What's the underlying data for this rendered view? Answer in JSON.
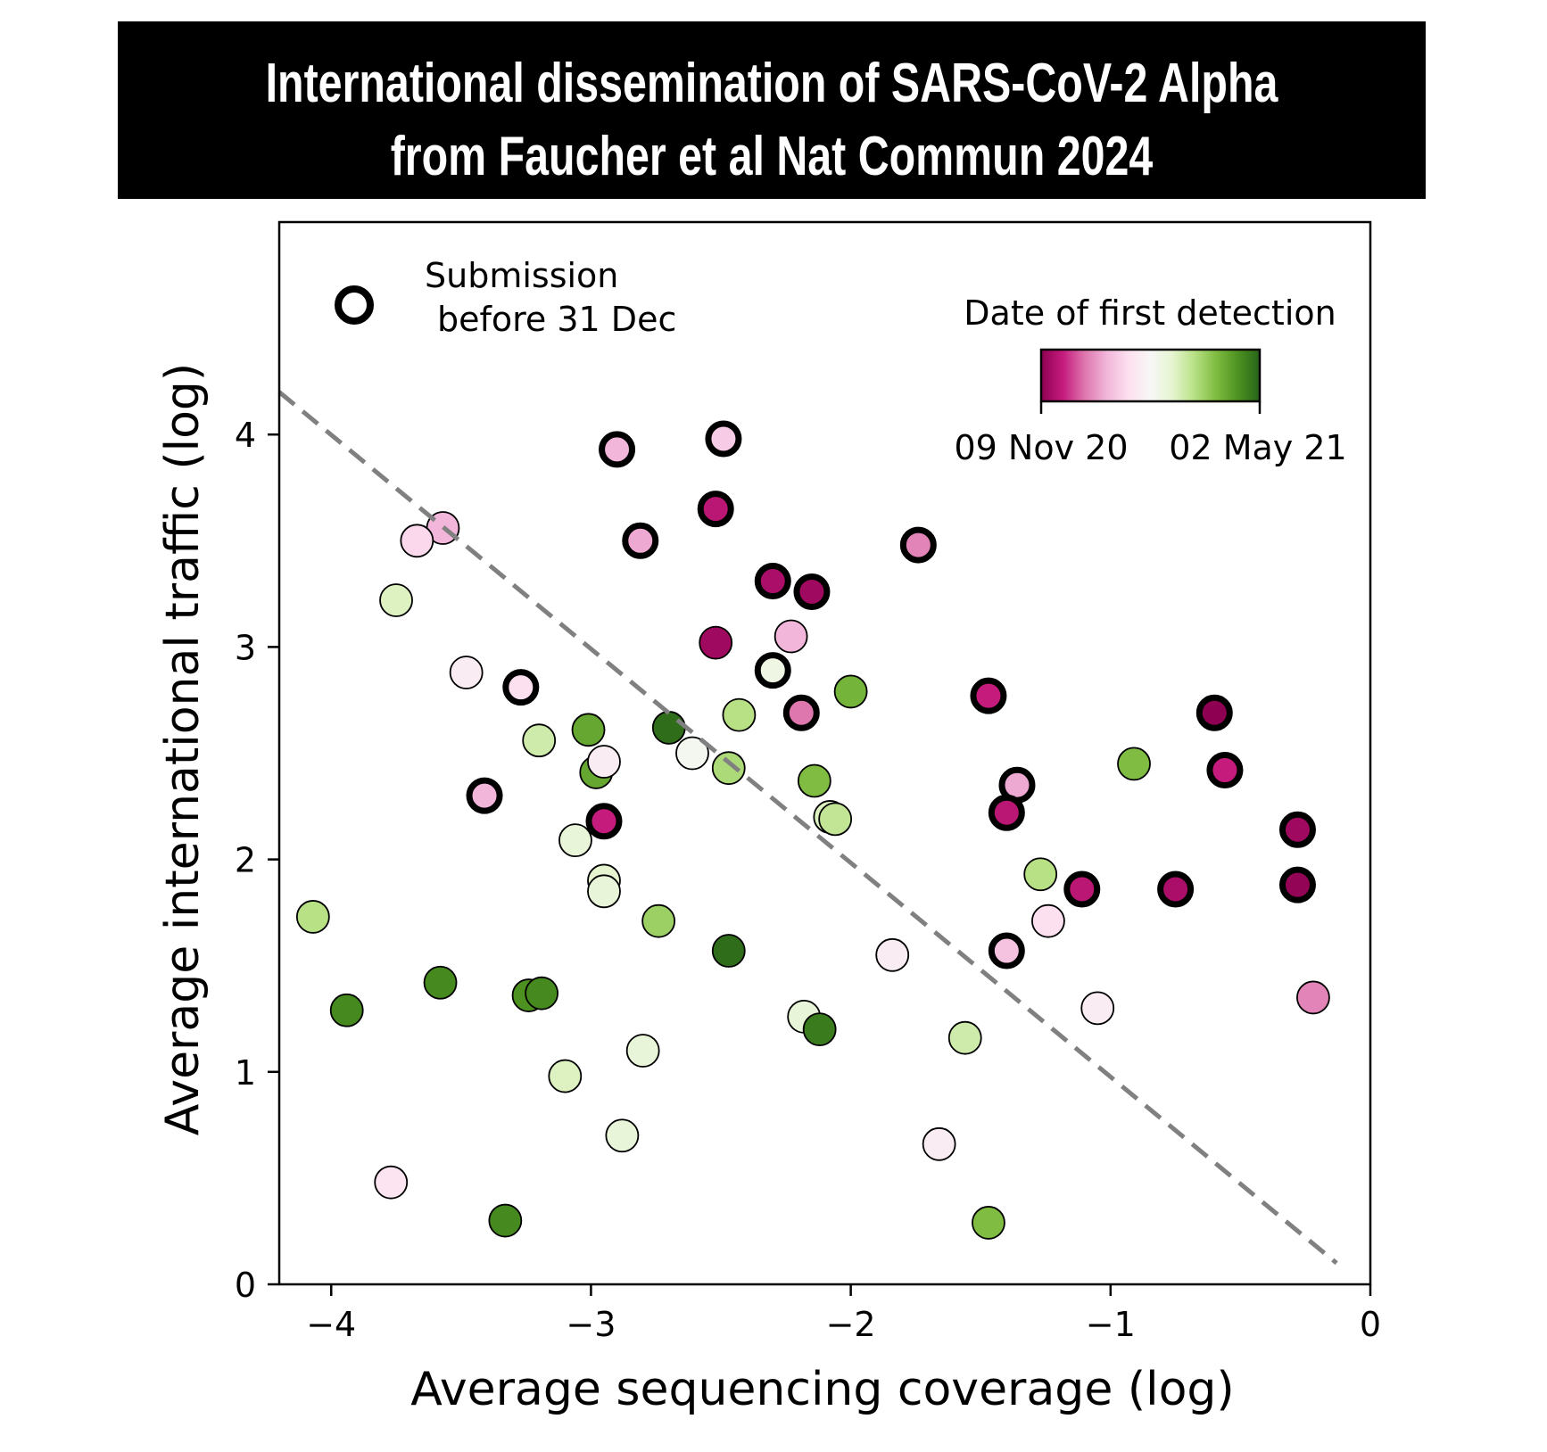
{
  "title": {
    "line1": "International dissemination of SARS-CoV-2 Alpha",
    "line2": "from Faucher et al Nat Commun 2024"
  },
  "chart_data": {
    "type": "scatter",
    "xlabel": "Average sequencing coverage (log)",
    "ylabel": "Average international traffic (log)",
    "xlim": [
      -4.2,
      0
    ],
    "ylim": [
      0,
      5
    ],
    "xticks": [
      -4,
      -3,
      -2,
      -1,
      0
    ],
    "xtick_labels": [
      "−4",
      "−3",
      "−2",
      "−1",
      "0"
    ],
    "yticks": [
      0,
      1,
      2,
      3,
      4
    ],
    "ytick_labels": [
      "0",
      "1",
      "2",
      "3",
      "4"
    ],
    "grid": false,
    "legend": {
      "placement": "top-left",
      "marker": "open circle with thick black outline",
      "label_line1": "Submission",
      "label_line2": "before 31 Dec"
    },
    "colorbar": {
      "title": "Date of first detection",
      "start_label": "09 Nov 20",
      "end_label": "02 May 21",
      "colormap": "PiYG",
      "colors": [
        "#8e0152",
        "#c51b7d",
        "#de77ae",
        "#f1b6da",
        "#fde0ef",
        "#f7f7f7",
        "#e6f5d0",
        "#b8e186",
        "#7fbc41",
        "#4d9221",
        "#276419"
      ]
    },
    "trend_line": {
      "style": "dashed",
      "color": "#808080",
      "x": [
        -4.2,
        -0.13
      ],
      "y": [
        4.2,
        0.1
      ]
    },
    "points_note": "c = normalized date of first detection (0 = 09 Nov 20, 1 = 02 May 21); early = submission before 31 Dec",
    "points": [
      {
        "x": -3.57,
        "y": 3.56,
        "c": 0.3,
        "early": false
      },
      {
        "x": -3.67,
        "y": 3.5,
        "c": 0.38,
        "early": false
      },
      {
        "x": -3.75,
        "y": 3.22,
        "c": 0.62,
        "early": false
      },
      {
        "x": -3.48,
        "y": 2.88,
        "c": 0.45,
        "early": false
      },
      {
        "x": -3.27,
        "y": 2.81,
        "c": 0.4,
        "early": true
      },
      {
        "x": -3.41,
        "y": 2.3,
        "c": 0.3,
        "early": true
      },
      {
        "x": -4.07,
        "y": 1.73,
        "c": 0.7,
        "early": false
      },
      {
        "x": -3.94,
        "y": 1.29,
        "c": 0.92,
        "early": false
      },
      {
        "x": -3.58,
        "y": 1.42,
        "c": 0.92,
        "early": false
      },
      {
        "x": -3.24,
        "y": 1.36,
        "c": 0.9,
        "early": false
      },
      {
        "x": -3.19,
        "y": 1.37,
        "c": 0.92,
        "early": false
      },
      {
        "x": -3.1,
        "y": 0.98,
        "c": 0.62,
        "early": false
      },
      {
        "x": -3.77,
        "y": 0.48,
        "c": 0.42,
        "early": false
      },
      {
        "x": -3.33,
        "y": 0.3,
        "c": 0.92,
        "early": false
      },
      {
        "x": -3.2,
        "y": 2.56,
        "c": 0.65,
        "early": false
      },
      {
        "x": -3.01,
        "y": 2.61,
        "c": 0.85,
        "early": false
      },
      {
        "x": -2.98,
        "y": 2.41,
        "c": 0.85,
        "early": false
      },
      {
        "x": -2.95,
        "y": 2.46,
        "c": 0.45,
        "early": false
      },
      {
        "x": -2.95,
        "y": 2.18,
        "c": 0.1,
        "early": true
      },
      {
        "x": -3.06,
        "y": 2.09,
        "c": 0.58,
        "early": false
      },
      {
        "x": -2.95,
        "y": 1.9,
        "c": 0.6,
        "early": false
      },
      {
        "x": -2.95,
        "y": 1.85,
        "c": 0.58,
        "early": false
      },
      {
        "x": -2.74,
        "y": 1.71,
        "c": 0.75,
        "early": false
      },
      {
        "x": -2.8,
        "y": 1.1,
        "c": 0.58,
        "early": false
      },
      {
        "x": -2.88,
        "y": 0.7,
        "c": 0.58,
        "early": false
      },
      {
        "x": -2.9,
        "y": 3.93,
        "c": 0.3,
        "early": true
      },
      {
        "x": -2.49,
        "y": 3.98,
        "c": 0.35,
        "early": true
      },
      {
        "x": -2.52,
        "y": 3.65,
        "c": 0.08,
        "early": true
      },
      {
        "x": -2.81,
        "y": 3.5,
        "c": 0.28,
        "early": true
      },
      {
        "x": -2.3,
        "y": 3.31,
        "c": 0.05,
        "early": true
      },
      {
        "x": -2.15,
        "y": 3.26,
        "c": 0.03,
        "early": true
      },
      {
        "x": -1.74,
        "y": 3.48,
        "c": 0.22,
        "early": true
      },
      {
        "x": -2.52,
        "y": 3.02,
        "c": 0.03,
        "early": false
      },
      {
        "x": -2.23,
        "y": 3.05,
        "c": 0.3,
        "early": false
      },
      {
        "x": -2.3,
        "y": 2.89,
        "c": 0.55,
        "early": true
      },
      {
        "x": -2.19,
        "y": 2.69,
        "c": 0.2,
        "early": true
      },
      {
        "x": -2.0,
        "y": 2.79,
        "c": 0.82,
        "early": false
      },
      {
        "x": -2.43,
        "y": 2.68,
        "c": 0.7,
        "early": false
      },
      {
        "x": -2.7,
        "y": 2.62,
        "c": 0.98,
        "early": false
      },
      {
        "x": -2.61,
        "y": 2.5,
        "c": 0.52,
        "early": false
      },
      {
        "x": -2.47,
        "y": 2.43,
        "c": 0.72,
        "early": false
      },
      {
        "x": -2.14,
        "y": 2.37,
        "c": 0.8,
        "early": false
      },
      {
        "x": -2.08,
        "y": 2.2,
        "c": 0.62,
        "early": false
      },
      {
        "x": -2.06,
        "y": 2.19,
        "c": 0.68,
        "early": false
      },
      {
        "x": -2.47,
        "y": 1.57,
        "c": 0.98,
        "early": false
      },
      {
        "x": -1.84,
        "y": 1.55,
        "c": 0.45,
        "early": false
      },
      {
        "x": -2.18,
        "y": 1.26,
        "c": 0.58,
        "early": false
      },
      {
        "x": -2.12,
        "y": 1.2,
        "c": 0.95,
        "early": false
      },
      {
        "x": -1.66,
        "y": 0.66,
        "c": 0.45,
        "early": false
      },
      {
        "x": -1.56,
        "y": 1.16,
        "c": 0.65,
        "early": false
      },
      {
        "x": -1.47,
        "y": 0.29,
        "c": 0.8,
        "early": false
      },
      {
        "x": -1.47,
        "y": 2.77,
        "c": 0.1,
        "early": true
      },
      {
        "x": -1.36,
        "y": 2.35,
        "c": 0.28,
        "early": true
      },
      {
        "x": -1.4,
        "y": 2.22,
        "c": 0.08,
        "early": true
      },
      {
        "x": -1.27,
        "y": 1.93,
        "c": 0.7,
        "early": false
      },
      {
        "x": -1.24,
        "y": 1.71,
        "c": 0.4,
        "early": false
      },
      {
        "x": -1.4,
        "y": 1.57,
        "c": 0.33,
        "early": true
      },
      {
        "x": -1.11,
        "y": 1.86,
        "c": 0.08,
        "early": true
      },
      {
        "x": -1.05,
        "y": 1.3,
        "c": 0.45,
        "early": false
      },
      {
        "x": -0.91,
        "y": 2.45,
        "c": 0.8,
        "early": false
      },
      {
        "x": -0.75,
        "y": 1.86,
        "c": 0.05,
        "early": true
      },
      {
        "x": -0.6,
        "y": 2.69,
        "c": 0.0,
        "early": true
      },
      {
        "x": -0.56,
        "y": 2.42,
        "c": 0.1,
        "early": true
      },
      {
        "x": -0.28,
        "y": 2.14,
        "c": 0.03,
        "early": true
      },
      {
        "x": -0.28,
        "y": 1.88,
        "c": 0.01,
        "early": true
      },
      {
        "x": -0.22,
        "y": 1.35,
        "c": 0.22,
        "early": false
      }
    ]
  }
}
